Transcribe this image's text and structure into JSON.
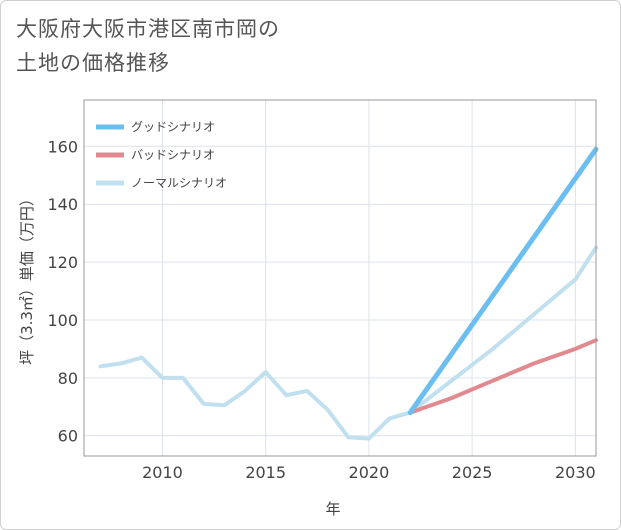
{
  "title": {
    "line1": "大阪府大阪市港区南市岡の",
    "line2": "土地の価格推移"
  },
  "chart_data": {
    "type": "line",
    "xlabel": "年",
    "ylabel": "坪（3.3㎡）単価（万円）",
    "xlim": [
      2006.2,
      2031
    ],
    "ylim": [
      53,
      176
    ],
    "xticks": [
      2010,
      2015,
      2020,
      2025,
      2030
    ],
    "yticks": [
      60,
      80,
      100,
      120,
      140,
      160
    ],
    "legend": [
      {
        "key": "good",
        "label": "グッドシナリオ",
        "color": "#6cbdf0"
      },
      {
        "key": "bad",
        "label": "バッドシナリオ",
        "color": "#e08a90"
      },
      {
        "key": "normal",
        "label": "ノーマルシナリオ",
        "color": "#c0e0ef"
      }
    ],
    "series": [
      {
        "name": "historical",
        "color": "#c0e0ef",
        "x": [
          2007,
          2008,
          2009,
          2010,
          2011,
          2012,
          2013,
          2014,
          2015,
          2016,
          2017,
          2018,
          2019,
          2020,
          2021,
          2022
        ],
        "y": [
          84,
          85,
          87,
          80,
          80,
          71,
          70.5,
          75.5,
          82,
          74,
          75.5,
          69,
          59.5,
          59,
          66,
          68
        ]
      },
      {
        "name": "グッドシナリオ",
        "color": "#6cbdf0",
        "x": [
          2022,
          2031
        ],
        "y": [
          68,
          159
        ]
      },
      {
        "name": "ノーマルシナリオ",
        "color": "#c0e0ef",
        "x": [
          2022,
          2024,
          2026,
          2028,
          2030,
          2031
        ],
        "y": [
          68,
          79,
          90,
          102,
          114,
          125
        ]
      },
      {
        "name": "バッドシナリオ",
        "color": "#e08a90",
        "x": [
          2022,
          2024,
          2026,
          2028,
          2030,
          2031
        ],
        "y": [
          68,
          73,
          79,
          85,
          90,
          93
        ]
      }
    ]
  }
}
